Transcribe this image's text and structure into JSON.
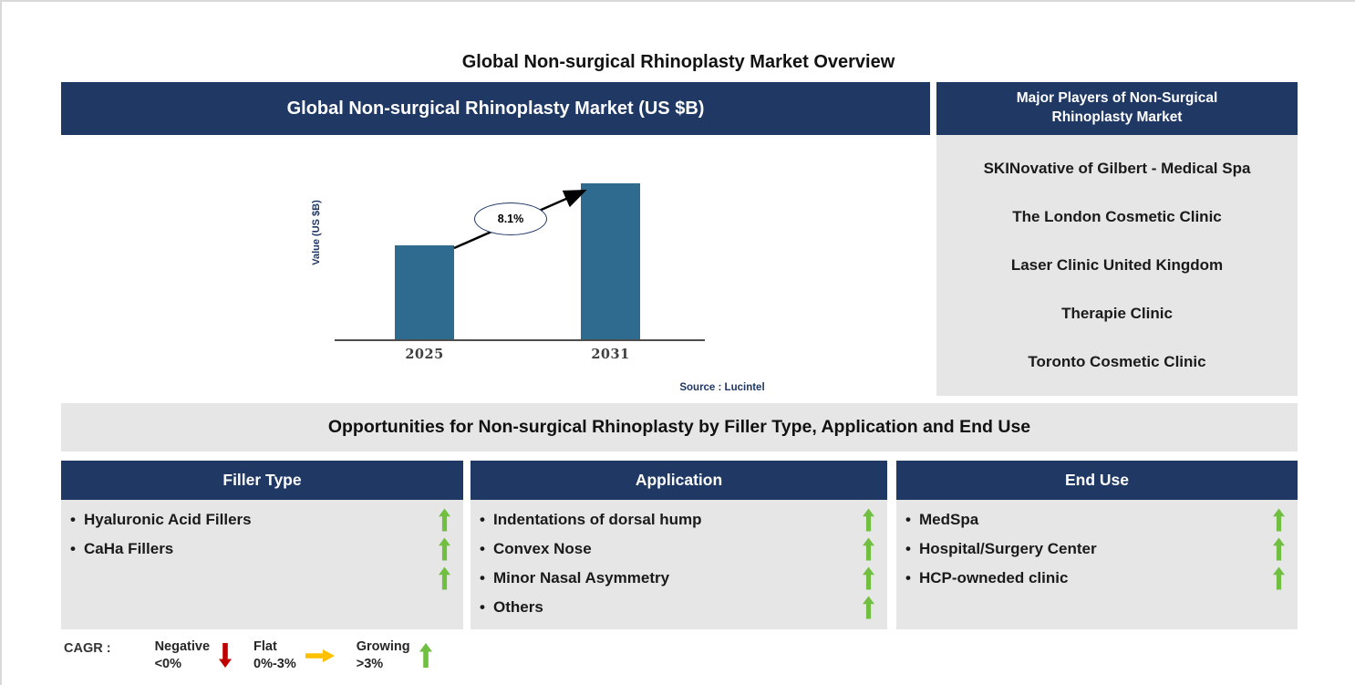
{
  "page": {
    "title": "Global Non-surgical Rhinoplasty Market Overview"
  },
  "market_chart": {
    "header": "Global Non-surgical Rhinoplasty Market (US $B)",
    "cagr_label": "8.1%",
    "source": "Source : Lucintel"
  },
  "chart_data": {
    "type": "bar",
    "title": "Global Non-surgical Rhinoplasty Market (US $B)",
    "categories": [
      "2025",
      "2031"
    ],
    "values": [
      1.0,
      1.66
    ],
    "values_estimated": true,
    "ylabel": "Value (US $B)",
    "xlabel": "",
    "annotation": "8.1%",
    "grid": false,
    "legend_position": "none",
    "bar_color": "#2E6B8F"
  },
  "major_players": {
    "header": "Major Players of Non-Surgical Rhinoplasty Market",
    "items": [
      "SKINovative of Gilbert - Medical Spa",
      "The London Cosmetic Clinic",
      "Laser Clinic United Kingdom",
      "Therapie Clinic",
      "Toronto Cosmetic Clinic"
    ]
  },
  "opportunities": {
    "header": "Opportunities for Non-surgical Rhinoplasty by Filler Type, Application and End Use",
    "columns": [
      {
        "header": "Filler Type",
        "items": [
          {
            "bullet": "•",
            "text": "Hyaluronic Acid Fillers",
            "trend": "up"
          },
          {
            "bullet": "•",
            "text": "CaHa Fillers",
            "trend": "up"
          },
          {
            "bullet": "",
            "text": "",
            "trend": "up"
          }
        ]
      },
      {
        "header": "Application",
        "items": [
          {
            "bullet": "•",
            "text": "Indentations of dorsal hump",
            "trend": "up"
          },
          {
            "bullet": "•",
            "text": "Convex Nose",
            "trend": "up"
          },
          {
            "bullet": "•",
            "text": "Minor Nasal Asymmetry",
            "trend": "up"
          },
          {
            "bullet": "•",
            "text": "Others",
            "trend": "up"
          }
        ]
      },
      {
        "header": "End Use",
        "items": [
          {
            "bullet": "•",
            "text": "MedSpa",
            "trend": "up"
          },
          {
            "bullet": "•",
            "text": "Hospital/Surgery Center",
            "trend": "up"
          },
          {
            "bullet": "•",
            "text": "HCP-owneded clinic",
            "trend": "up"
          }
        ]
      }
    ]
  },
  "cagr_legend": {
    "label": "CAGR :",
    "items": [
      {
        "name": "Negative",
        "range": "<0%",
        "direction": "down",
        "color": "#C00000"
      },
      {
        "name": "Flat",
        "range": "0%-3%",
        "direction": "right",
        "color": "#FFC000"
      },
      {
        "name": "Growing",
        "range": ">3%",
        "direction": "up",
        "color": "#70BF41"
      }
    ]
  },
  "colors": {
    "header_navy": "#1F3864",
    "panel_gray": "#E7E6E6",
    "bar_blue": "#2E6B8F",
    "arrow_green": "#70BF41"
  }
}
